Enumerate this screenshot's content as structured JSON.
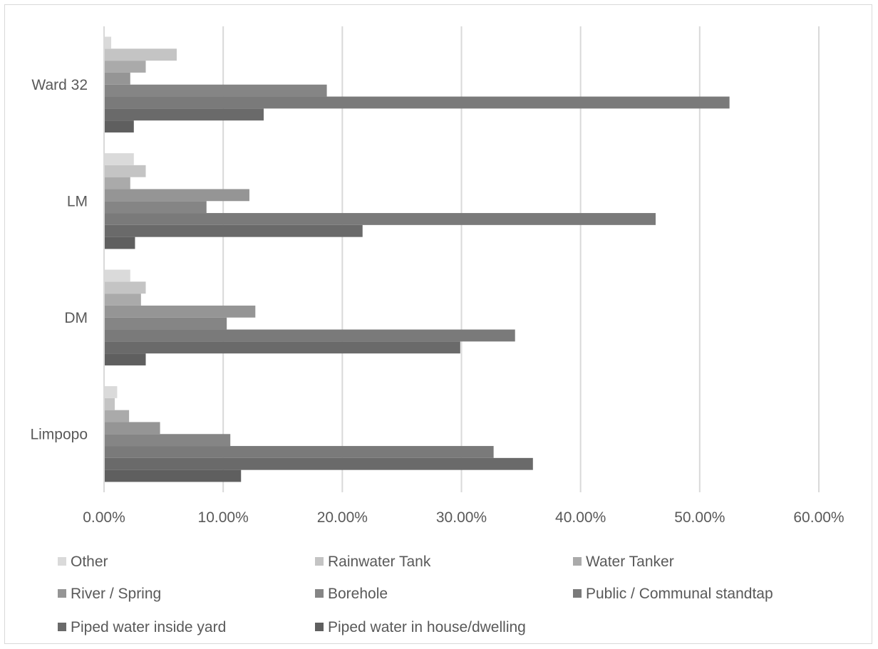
{
  "chart_data": {
    "type": "bar",
    "orientation": "horizontal",
    "categories": [
      "Limpopo",
      "DM",
      "LM",
      "Ward 32"
    ],
    "series": [
      {
        "name": "Piped water in house/dwelling",
        "color": "#5f5f5f",
        "values": [
          0.115,
          0.035,
          0.026,
          0.025
        ]
      },
      {
        "name": "Piped water inside yard",
        "color": "#6a6a6a",
        "values": [
          0.36,
          0.299,
          0.217,
          0.134
        ]
      },
      {
        "name": "Public / Communal standtap",
        "color": "#7a7a7a",
        "values": [
          0.327,
          0.345,
          0.463,
          0.525
        ]
      },
      {
        "name": "Borehole",
        "color": "#858585",
        "values": [
          0.106,
          0.103,
          0.086,
          0.187
        ]
      },
      {
        "name": "River / Spring",
        "color": "#959595",
        "values": [
          0.047,
          0.127,
          0.122,
          0.022
        ]
      },
      {
        "name": "Water Tanker",
        "color": "#aaaaaa",
        "values": [
          0.021,
          0.031,
          0.022,
          0.035
        ]
      },
      {
        "name": "Rainwater Tank",
        "color": "#c4c4c4",
        "values": [
          0.009,
          0.035,
          0.035,
          0.061
        ]
      },
      {
        "name": "Other",
        "color": "#dadada",
        "values": [
          0.011,
          0.022,
          0.025,
          0.006
        ]
      }
    ],
    "x_ticks": [
      "0.00%",
      "10.00%",
      "20.00%",
      "30.00%",
      "40.00%",
      "50.00%",
      "60.00%"
    ],
    "xlim": [
      0,
      0.6
    ],
    "grid": true,
    "legend_position": "bottom",
    "legend_order": [
      "Other",
      "Rainwater Tank",
      "Water Tanker",
      "River / Spring",
      "Borehole",
      "Public / Communal standtap",
      "Piped water inside yard",
      "Piped water in house/dwelling"
    ]
  }
}
